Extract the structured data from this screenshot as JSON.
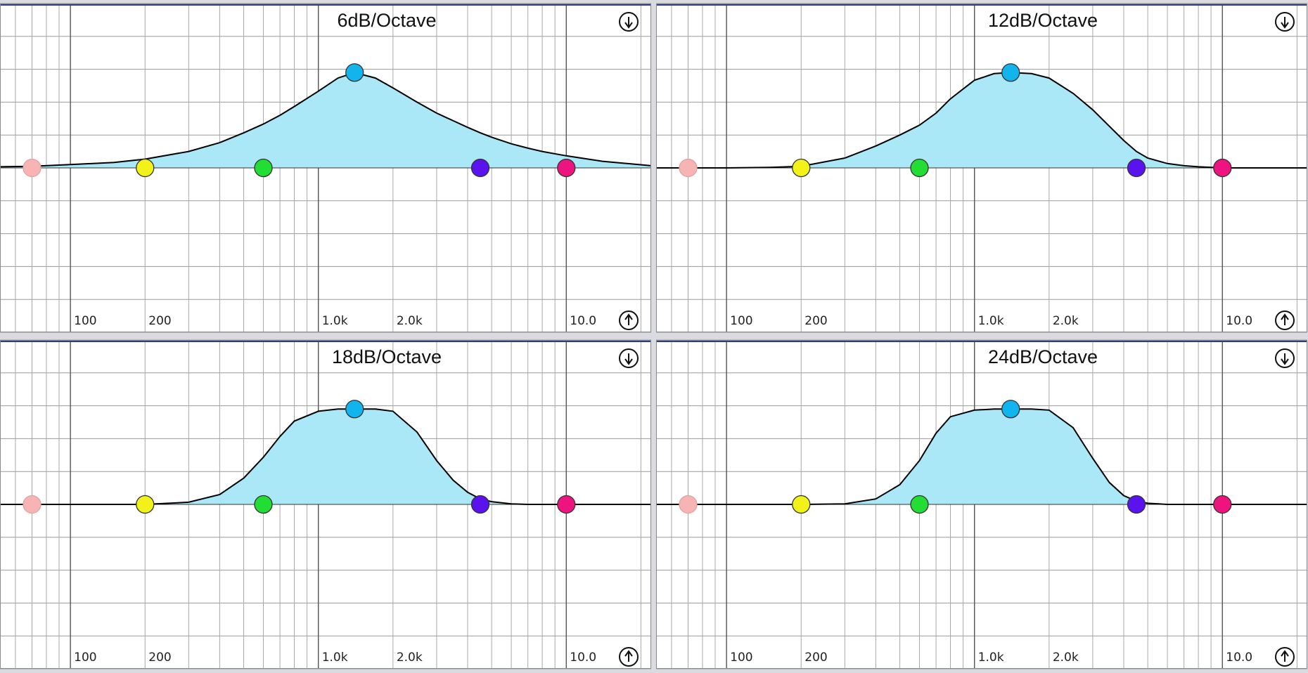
{
  "chart_data": [
    {
      "type": "line",
      "title": "6dB/Octave",
      "xlog": true,
      "xlim": [
        52,
        22000
      ],
      "ylim": [
        -15,
        15
      ],
      "yticks": [
        -15,
        -12,
        -9,
        -6,
        -3,
        0,
        3,
        6,
        9,
        12,
        15
      ],
      "xticks": [
        100,
        200,
        {
          "value": 1000,
          "label": "1.0k"
        },
        {
          "value": 2000,
          "label": "2.0k"
        },
        {
          "value": 10000,
          "label": "10.0"
        }
      ],
      "xgrid": [
        60,
        70,
        80,
        90,
        100,
        200,
        300,
        400,
        500,
        600,
        700,
        800,
        900,
        1000,
        2000,
        3000,
        4000,
        5000,
        6000,
        7000,
        8000,
        9000,
        10000,
        20000
      ],
      "color": "#000000",
      "fill": "#aae8f8",
      "x": [
        52,
        70,
        100,
        150,
        200,
        300,
        400,
        500,
        600,
        700,
        800,
        1000,
        1200,
        1400,
        1700,
        2000,
        2500,
        3000,
        3500,
        4000,
        4500,
        5000,
        6000,
        7000,
        8000,
        10000,
        14000,
        22000
      ],
      "values": [
        0.1,
        0.15,
        0.3,
        0.5,
        0.8,
        1.5,
        2.3,
        3.2,
        4.0,
        4.8,
        5.6,
        7.0,
        8.2,
        8.7,
        8.2,
        7.3,
        6.0,
        5.0,
        4.3,
        3.7,
        3.2,
        2.8,
        2.2,
        1.8,
        1.5,
        1.1,
        0.6,
        0.2
      ],
      "handles": [
        {
          "x": 70,
          "y": 0,
          "color": "#f6b4b4"
        },
        {
          "x": 200,
          "y": 0,
          "color": "#f2f21a"
        },
        {
          "x": 600,
          "y": 0,
          "color": "#22dd33"
        },
        {
          "x": 1400,
          "y": 8.7,
          "color": "#12b4ee"
        },
        {
          "x": 4500,
          "y": 0,
          "color": "#5a12ee"
        },
        {
          "x": 10000,
          "y": 0,
          "color": "#ee1480"
        }
      ]
    },
    {
      "type": "line",
      "title": "12dB/Octave",
      "xlog": true,
      "xlim": [
        52,
        22000
      ],
      "ylim": [
        -15,
        15
      ],
      "yticks": [
        -15,
        -12,
        -9,
        -6,
        -3,
        0,
        3,
        6,
        9,
        12,
        15
      ],
      "xticks": [
        100,
        200,
        {
          "value": 1000,
          "label": "1.0k"
        },
        {
          "value": 2000,
          "label": "2.0k"
        },
        {
          "value": 10000,
          "label": "10.0"
        }
      ],
      "xgrid": [
        60,
        70,
        80,
        90,
        100,
        200,
        300,
        400,
        500,
        600,
        700,
        800,
        900,
        1000,
        2000,
        3000,
        4000,
        5000,
        6000,
        7000,
        8000,
        9000,
        10000,
        20000
      ],
      "color": "#000000",
      "fill": "#aae8f8",
      "x": [
        52,
        70,
        100,
        150,
        200,
        300,
        400,
        500,
        600,
        700,
        800,
        1000,
        1200,
        1400,
        1700,
        2000,
        2500,
        3000,
        3500,
        4000,
        4500,
        5000,
        6000,
        7000,
        8000,
        10000,
        14000,
        22000
      ],
      "values": [
        0,
        0,
        0,
        0.05,
        0.15,
        0.9,
        2.0,
        3.0,
        3.9,
        5.0,
        6.3,
        8.0,
        8.6,
        8.7,
        8.6,
        8.2,
        6.8,
        5.3,
        3.8,
        2.5,
        1.5,
        0.9,
        0.4,
        0.2,
        0.1,
        0,
        0,
        0
      ],
      "handles": [
        {
          "x": 70,
          "y": 0,
          "color": "#f6b4b4"
        },
        {
          "x": 200,
          "y": 0,
          "color": "#f2f21a"
        },
        {
          "x": 600,
          "y": 0,
          "color": "#22dd33"
        },
        {
          "x": 1400,
          "y": 8.7,
          "color": "#12b4ee"
        },
        {
          "x": 4500,
          "y": 0,
          "color": "#5a12ee"
        },
        {
          "x": 10000,
          "y": 0,
          "color": "#ee1480"
        }
      ]
    },
    {
      "type": "line",
      "title": "18dB/Octave",
      "xlog": true,
      "xlim": [
        52,
        22000
      ],
      "ylim": [
        -15,
        15
      ],
      "yticks": [
        -15,
        -12,
        -9,
        -6,
        -3,
        0,
        3,
        6,
        9,
        12,
        15
      ],
      "xticks": [
        100,
        200,
        {
          "value": 1000,
          "label": "1.0k"
        },
        {
          "value": 2000,
          "label": "2.0k"
        },
        {
          "value": 10000,
          "label": "10.0"
        }
      ],
      "xgrid": [
        60,
        70,
        80,
        90,
        100,
        200,
        300,
        400,
        500,
        600,
        700,
        800,
        900,
        1000,
        2000,
        3000,
        4000,
        5000,
        6000,
        7000,
        8000,
        9000,
        10000,
        20000
      ],
      "color": "#000000",
      "fill": "#aae8f8",
      "x": [
        52,
        70,
        100,
        150,
        200,
        300,
        400,
        500,
        600,
        700,
        800,
        1000,
        1200,
        1400,
        1700,
        2000,
        2500,
        3000,
        3500,
        4000,
        4500,
        5000,
        6000,
        7000,
        8000,
        10000,
        14000,
        22000
      ],
      "values": [
        0,
        0,
        0,
        0,
        0,
        0.2,
        0.9,
        2.4,
        4.3,
        6.2,
        7.6,
        8.5,
        8.7,
        8.7,
        8.7,
        8.5,
        6.6,
        4.0,
        2.2,
        1.1,
        0.5,
        0.25,
        0.05,
        0,
        0,
        0,
        0,
        0
      ],
      "handles": [
        {
          "x": 70,
          "y": 0,
          "color": "#f6b4b4"
        },
        {
          "x": 200,
          "y": 0,
          "color": "#f2f21a"
        },
        {
          "x": 600,
          "y": 0,
          "color": "#22dd33"
        },
        {
          "x": 1400,
          "y": 8.7,
          "color": "#12b4ee"
        },
        {
          "x": 4500,
          "y": 0,
          "color": "#5a12ee"
        },
        {
          "x": 10000,
          "y": 0,
          "color": "#ee1480"
        }
      ]
    },
    {
      "type": "line",
      "title": "24dB/Octave",
      "xlog": true,
      "xlim": [
        52,
        22000
      ],
      "ylim": [
        -15,
        15
      ],
      "yticks": [
        -15,
        -12,
        -9,
        -6,
        -3,
        0,
        3,
        6,
        9,
        12,
        15
      ],
      "xticks": [
        100,
        200,
        {
          "value": 1000,
          "label": "1.0k"
        },
        {
          "value": 2000,
          "label": "2.0k"
        },
        {
          "value": 10000,
          "label": "10.0"
        }
      ],
      "xgrid": [
        60,
        70,
        80,
        90,
        100,
        200,
        300,
        400,
        500,
        600,
        700,
        800,
        900,
        1000,
        2000,
        3000,
        4000,
        5000,
        6000,
        7000,
        8000,
        9000,
        10000,
        20000
      ],
      "color": "#000000",
      "fill": "#aae8f8",
      "x": [
        52,
        70,
        100,
        150,
        200,
        300,
        400,
        500,
        600,
        700,
        800,
        1000,
        1200,
        1400,
        1700,
        2000,
        2500,
        3000,
        3500,
        4000,
        4500,
        5000,
        6000,
        7000,
        8000,
        10000,
        14000,
        22000
      ],
      "values": [
        0,
        0,
        0,
        0,
        0,
        0.05,
        0.5,
        1.8,
        4.0,
        6.5,
        8.0,
        8.6,
        8.7,
        8.7,
        8.7,
        8.6,
        7.0,
        4.2,
        2.0,
        0.8,
        0.3,
        0.1,
        0,
        0,
        0,
        0,
        0,
        0
      ],
      "handles": [
        {
          "x": 70,
          "y": 0,
          "color": "#f6b4b4"
        },
        {
          "x": 200,
          "y": 0,
          "color": "#f2f21a"
        },
        {
          "x": 600,
          "y": 0,
          "color": "#22dd33"
        },
        {
          "x": 1400,
          "y": 8.7,
          "color": "#12b4ee"
        },
        {
          "x": 4500,
          "y": 0,
          "color": "#5a12ee"
        },
        {
          "x": 10000,
          "y": 0,
          "color": "#ee1480"
        }
      ]
    }
  ]
}
